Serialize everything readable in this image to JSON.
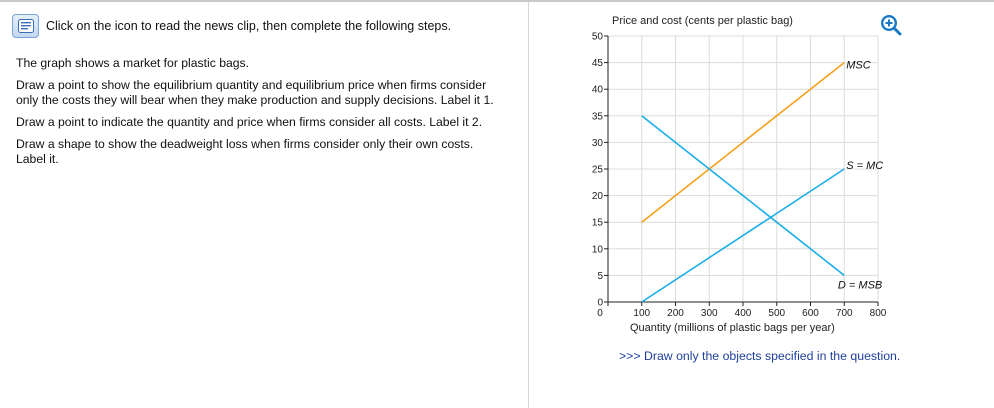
{
  "question": {
    "clip_instruction": "Click on the icon to read the news clip, then complete the following steps.",
    "steps": [
      "The graph shows a market for plastic bags.",
      "Draw a point to show the equilibrium quantity and equilibrium price when firms consider only the costs they will bear when they make production and supply decisions. Label it 1.",
      "Draw a point to indicate the quantity and price when firms consider all costs. Label it 2.",
      "Draw a shape to show the deadweight loss when firms consider only their own costs. Label it."
    ]
  },
  "icons": {
    "clip_icon": "news-clip-icon",
    "zoom_icon": "zoom-in-icon"
  },
  "colors": {
    "msc": "#f5a01a",
    "supply_demand": "#1aaee8",
    "note": "#1f3f9c"
  },
  "chart_data": {
    "type": "line",
    "ylabel": "Price and cost (cents per plastic bag)",
    "xlabel": "Quantity (millions of plastic bags per year)",
    "xlim": [
      0,
      800
    ],
    "ylim": [
      0,
      50
    ],
    "x_ticks": [
      0,
      100,
      200,
      300,
      400,
      500,
      600,
      700,
      800
    ],
    "y_ticks": [
      0,
      5,
      10,
      15,
      20,
      25,
      30,
      35,
      40,
      45,
      50
    ],
    "grid": true,
    "series": [
      {
        "name": "MSC",
        "label": "MSC",
        "color": "#f5a01a",
        "x": [
          100,
          700
        ],
        "y": [
          15,
          45
        ]
      },
      {
        "name": "S = MC",
        "label": "S = MC",
        "color": "#1aaee8",
        "x": [
          100,
          700
        ],
        "y": [
          0,
          25
        ]
      },
      {
        "name": "D = MSB",
        "label": "D = MSB",
        "color": "#1aaee8",
        "x": [
          100,
          700
        ],
        "y": [
          35,
          5
        ]
      }
    ]
  },
  "note": {
    "prefix": ">>>",
    "text": "Draw only the objects specified in the question."
  }
}
